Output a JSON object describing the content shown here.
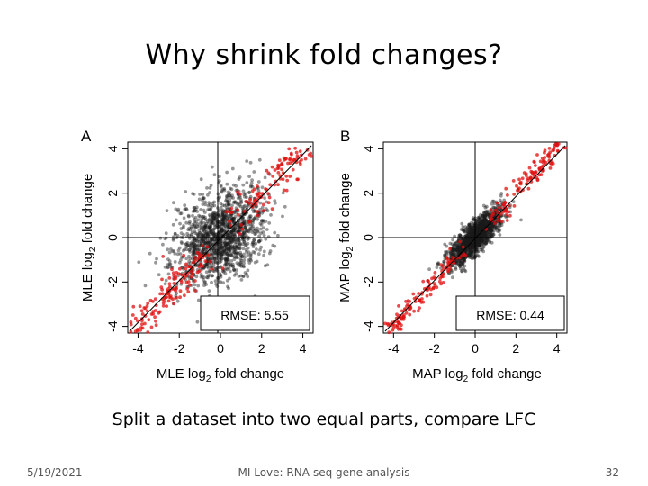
{
  "slide": {
    "title": "Why shrink fold changes?",
    "caption": "Split a dataset into two equal parts, compare LFC",
    "footer_date": "5/19/2021",
    "footer_center": "MI Love: RNA-seq gene analysis",
    "footer_page": "32"
  },
  "chart_data": [
    {
      "type": "scatter",
      "panel": "A",
      "xlabel": "MLE log2 fold change",
      "ylabel": "MLE log2 fold change",
      "xlim": [
        -4.5,
        4.5
      ],
      "ylim": [
        -4.3,
        4.3
      ],
      "xticks": [
        -4,
        -2,
        0,
        2,
        4
      ],
      "yticks": [
        -4,
        -2,
        0,
        2,
        4
      ],
      "reference_lines": [
        "x=0",
        "y=0",
        "y=x"
      ],
      "annotation": "RMSE: 5.55",
      "series": [
        {
          "color": "#333333",
          "description_points": "many genes, wide spread around y=x"
        },
        {
          "color": "#e01010",
          "description_points": "subset of genes along diagonal"
        }
      ]
    },
    {
      "type": "scatter",
      "panel": "B",
      "xlabel": "MAP log2 fold change",
      "ylabel": "MAP log2 fold change",
      "xlim": [
        -4.5,
        4.5
      ],
      "ylim": [
        -4.3,
        4.3
      ],
      "xticks": [
        -4,
        -2,
        0,
        2,
        4
      ],
      "yticks": [
        -4,
        -2,
        0,
        2,
        4
      ],
      "reference_lines": [
        "x=0",
        "y=0",
        "y=x"
      ],
      "annotation": "RMSE: 0.44",
      "series": [
        {
          "color": "#333333",
          "description_points": "genes tightly clustered along y=x"
        },
        {
          "color": "#e01010",
          "description_points": "subset of genes along diagonal"
        }
      ]
    }
  ]
}
